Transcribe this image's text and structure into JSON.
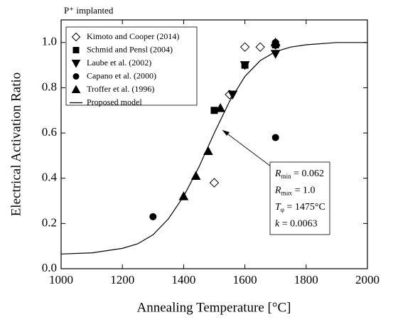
{
  "chart_data": {
    "type": "scatter",
    "xlabel": "Annealing Temperature [°C]",
    "ylabel": "Electrical Activation Ratio",
    "xlim": [
      1000,
      2000
    ],
    "xticks": [
      1000,
      1200,
      1400,
      1600,
      1800,
      2000
    ],
    "ylim": [
      0,
      1.1
    ],
    "yticks": [
      {
        "value": 0,
        "label": "0.0"
      },
      0.2,
      0.4,
      0.6,
      0.8,
      {
        "value": 1,
        "label": "1.0"
      }
    ],
    "legend": "upper-left",
    "series": [
      {
        "name": "Kimoto and Cooper (2014)",
        "marker": "diamond-open",
        "color": "#000000",
        "x": [
          1500,
          1550,
          1600,
          1650,
          1700
        ],
        "values": [
          0.38,
          0.77,
          0.98,
          0.98,
          0.99
        ]
      },
      {
        "name": "Schmid and Pensl (2004)",
        "marker": "square",
        "color": "#000000",
        "x": [
          1500,
          1600,
          1700
        ],
        "values": [
          0.7,
          0.9,
          0.99
        ]
      },
      {
        "name": "Laube et al. (2002)",
        "marker": "triangle-down",
        "color": "#000000",
        "x": [
          1560,
          1600,
          1700
        ],
        "values": [
          0.77,
          0.9,
          0.95
        ]
      },
      {
        "name": "Capano et al. (2000)",
        "marker": "circle",
        "color": "#000000",
        "x": [
          1300,
          1700,
          1700
        ],
        "values": [
          0.23,
          0.58,
          1.0
        ]
      },
      {
        "name": "Troffer et al. (1996)",
        "marker": "triangle-up",
        "color": "#000000",
        "x": [
          1400,
          1440,
          1480,
          1520,
          1700
        ],
        "values": [
          0.32,
          0.41,
          0.52,
          0.71,
          1.0
        ]
      },
      {
        "name": "Proposed model",
        "marker": "line",
        "color": "#000000",
        "x": [
          1000,
          1100,
          1200,
          1250,
          1300,
          1350,
          1400,
          1450,
          1500,
          1550,
          1600,
          1650,
          1700,
          1750,
          1800,
          1900,
          2000
        ],
        "values": [
          0.065,
          0.07,
          0.09,
          0.11,
          0.15,
          0.22,
          0.32,
          0.45,
          0.6,
          0.74,
          0.85,
          0.92,
          0.96,
          0.98,
          0.99,
          1.0,
          1.0
        ]
      }
    ],
    "annotation_top": "P⁺ implanted",
    "parameters": [
      {
        "var": "R",
        "sub": "min",
        "rest": " = 0.062"
      },
      {
        "var": "R",
        "sub": "max",
        "rest": " = 1.0"
      },
      {
        "var": "T",
        "sub": "φ",
        "rest": " = 1475°C"
      },
      {
        "var": "k",
        "rest": " = 0.0063"
      }
    ]
  }
}
